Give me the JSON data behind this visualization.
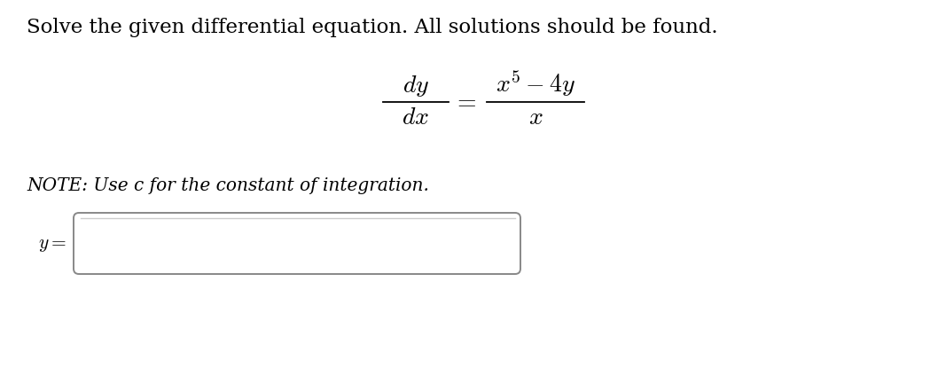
{
  "title_line": "Solve the given differential equation. All solutions should be found.",
  "note_text": "NOTE: Use c for the constant of integration.",
  "bg_color": "#ffffff",
  "text_color": "#000000",
  "title_fontsize": 16.5,
  "note_fontsize": 14.5,
  "equation_fontsize": 20
}
